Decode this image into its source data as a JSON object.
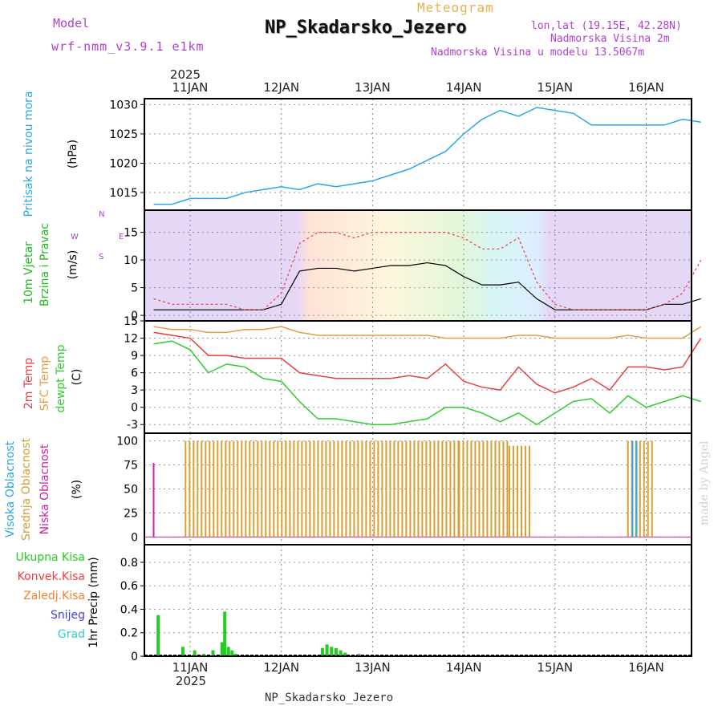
{
  "header": {
    "model_label": "Model",
    "model_name": "wrf-nmm_v3.9.1 e1km",
    "meteogram_label": "Meteogram",
    "station": "NP_Skadarsko_Jezero",
    "lonlat": "lon,lat (19.15E, 42.28N)",
    "altitude": "Nadmorska Visina 2m",
    "model_altitude": "Nadmorska Visina u modelu 13.5067m"
  },
  "footer": {
    "station": "NP_Skadarsko_Jezero",
    "made_by": "made by Angel"
  },
  "colors": {
    "pressure": "#2aa7e8",
    "temp2m": "#e84040",
    "sfc_temp": "#e0a040",
    "dewpt": "#30cc30",
    "wind_label": "#22bb22",
    "vis_oblac": "#2aa7e8",
    "sred_oblac": "#d8a030",
    "nisk_oblac": "#d020a0",
    "precip_total": "#22cc22",
    "precip_konvek": "#e84040",
    "precip_zaledj": "#f08030",
    "precip_snijeg": "#4040e0",
    "precip_grad": "#30cccc",
    "purple": "#b040d0"
  },
  "axes": {
    "year_label": "2025",
    "date_ticks": [
      "11JAN",
      "12JAN",
      "13JAN",
      "14JAN",
      "15JAN",
      "16JAN"
    ]
  },
  "panels": {
    "pressure": {
      "ylabel": "Pritisak na nivou mora",
      "unit": "(hPa)",
      "ticks": [
        "1015",
        "1020",
        "1025",
        "1030"
      ]
    },
    "wind": {
      "ylabel1": "10m Vjetar",
      "ylabel2": "Brzina i Pravac",
      "unit": "(m/s)",
      "ticks": [
        "0",
        "5",
        "10",
        "15"
      ],
      "compass": [
        "W",
        "E",
        "N",
        "S"
      ]
    },
    "temp": {
      "label1": "2m Temp",
      "label2": "SFC Temp",
      "label3": "dewpt Temp",
      "unit": "(C)",
      "ticks": [
        "-3",
        "0",
        "3",
        "6",
        "9",
        "12",
        "15"
      ]
    },
    "cloud": {
      "label1": "Visoka Oblacnost",
      "label2": "Srednja Oblacnost",
      "label3": "Niska Oblacnost",
      "unit": "(%)",
      "ticks": [
        "0",
        "25",
        "50",
        "75",
        "100"
      ]
    },
    "precip": {
      "legend": [
        "Ukupna Kisa",
        "Konvek.Kisa",
        "Zaledj.Kisa",
        "Snijeg",
        "Grad"
      ],
      "unit": "1hr Precip (mm)",
      "ticks": [
        "0",
        "0.2",
        "0.4",
        "0.6",
        "0.8"
      ]
    }
  },
  "chart_data": [
    {
      "type": "line",
      "name": "pressure",
      "x_days": [
        10.6,
        10.8,
        11.0,
        11.2,
        11.4,
        11.6,
        11.8,
        12.0,
        12.2,
        12.4,
        12.6,
        12.8,
        13.0,
        13.2,
        13.4,
        13.6,
        13.8,
        14.0,
        14.2,
        14.4,
        14.6,
        14.8,
        15.0,
        15.2,
        15.4,
        15.6,
        15.8,
        16.0,
        16.2,
        16.4,
        16.6
      ],
      "values": [
        1013,
        1013,
        1014,
        1014,
        1014,
        1015,
        1015.5,
        1016,
        1015.5,
        1016.5,
        1016,
        1016.5,
        1017,
        1018,
        1019,
        1020.5,
        1022,
        1025,
        1027.5,
        1029,
        1028,
        1029.5,
        1029,
        1028.5,
        1026.5,
        1026.5,
        1026.5,
        1026.5,
        1026.5,
        1027.5,
        1027
      ],
      "ylim": [
        1012,
        1031
      ]
    },
    {
      "type": "line",
      "name": "wind_speed",
      "x_days": [
        10.6,
        10.8,
        11.0,
        11.2,
        11.4,
        11.6,
        11.8,
        12.0,
        12.2,
        12.4,
        12.6,
        12.8,
        13.0,
        13.2,
        13.4,
        13.6,
        13.8,
        14.0,
        14.2,
        14.4,
        14.6,
        14.8,
        15.0,
        15.2,
        15.4,
        15.6,
        15.8,
        16.0,
        16.2,
        16.4,
        16.6
      ],
      "values": [
        1,
        1,
        1,
        1,
        1,
        1,
        1,
        2,
        8,
        8.5,
        8.5,
        8,
        8.5,
        9,
        9,
        9.5,
        9,
        7,
        5.5,
        5.5,
        6,
        3,
        1,
        1,
        1,
        1,
        1,
        1,
        2,
        2,
        3
      ],
      "gust_values": [
        3,
        2,
        2,
        2,
        2,
        1,
        1,
        4,
        13,
        15,
        15,
        14,
        15,
        15,
        15,
        15,
        15,
        14,
        12,
        12,
        14,
        6,
        2,
        1,
        1,
        1,
        1,
        1,
        2,
        4,
        10
      ],
      "ylim": [
        -1,
        19
      ]
    },
    {
      "type": "line",
      "name": "temperatures",
      "x_days": [
        10.6,
        10.8,
        11.0,
        11.2,
        11.4,
        11.6,
        11.8,
        12.0,
        12.2,
        12.4,
        12.6,
        12.8,
        13.0,
        13.2,
        13.4,
        13.6,
        13.8,
        14.0,
        14.2,
        14.4,
        14.6,
        14.8,
        15.0,
        15.2,
        15.4,
        15.6,
        15.8,
        16.0,
        16.2,
        16.4,
        16.6
      ],
      "series": [
        {
          "key": "t2m",
          "values": [
            13,
            12.5,
            12,
            9,
            9,
            8.5,
            8.5,
            8.5,
            6,
            5.5,
            5,
            5,
            5,
            5,
            5.5,
            5,
            7.5,
            4.5,
            3.5,
            3,
            7,
            4,
            2.5,
            3.5,
            5,
            3,
            7,
            7,
            6.5,
            7,
            12
          ]
        },
        {
          "key": "sfc",
          "values": [
            14,
            13.5,
            13.5,
            13,
            13,
            13.5,
            13.5,
            14,
            13,
            12.5,
            12.5,
            12.5,
            12.5,
            12.5,
            12.5,
            12.5,
            12,
            12,
            12,
            12,
            12.5,
            12.5,
            12,
            12,
            12,
            12,
            12.5,
            12,
            12,
            12,
            14
          ]
        },
        {
          "key": "dewpt",
          "values": [
            11,
            11.5,
            10,
            6,
            7.5,
            7,
            5,
            4.5,
            1,
            -2,
            -2,
            -2.5,
            -3,
            -3,
            -2.5,
            -2,
            0,
            0,
            -1,
            -2.5,
            -1,
            -3,
            -1,
            1,
            1.5,
            -1,
            2,
            0,
            1,
            2,
            1
          ]
        }
      ],
      "ylim": [
        -4.5,
        15
      ]
    },
    {
      "type": "bar",
      "name": "cloud_cover",
      "note": "bars of mid/low cloud cover (%) per model hour",
      "ylim": [
        0,
        100
      ],
      "segments": [
        {
          "x": [
            10.6,
            10.62
          ],
          "value": 77,
          "layer": "low"
        },
        {
          "x": [
            10.95,
            12.05
          ],
          "value": 100,
          "layer": "mid"
        },
        {
          "x": [
            12.05,
            13.95
          ],
          "value": 100,
          "layer": "mid"
        },
        {
          "x": [
            13.95,
            14.5
          ],
          "value": 100,
          "layer": "mid"
        },
        {
          "x": [
            14.5,
            14.75
          ],
          "value": 95,
          "layer": "mid"
        },
        {
          "x": [
            15.8,
            16.1
          ],
          "value": 100,
          "layer": "mid"
        },
        {
          "x": [
            15.85,
            15.9
          ],
          "value": 100,
          "layer": "high"
        }
      ]
    },
    {
      "type": "bar",
      "name": "precipitation",
      "ylim": [
        0,
        0.95
      ],
      "x_days": [
        10.65,
        10.92,
        11.05,
        11.15,
        11.25,
        11.35,
        11.38,
        11.42,
        11.46,
        11.5,
        12.45,
        12.5,
        12.55,
        12.6,
        12.65,
        12.7,
        12.85
      ],
      "values": [
        0.35,
        0.08,
        0.05,
        0.02,
        0.05,
        0.12,
        0.38,
        0.08,
        0.05,
        0.02,
        0.07,
        0.1,
        0.08,
        0.07,
        0.05,
        0.03,
        0.02
      ]
    }
  ]
}
